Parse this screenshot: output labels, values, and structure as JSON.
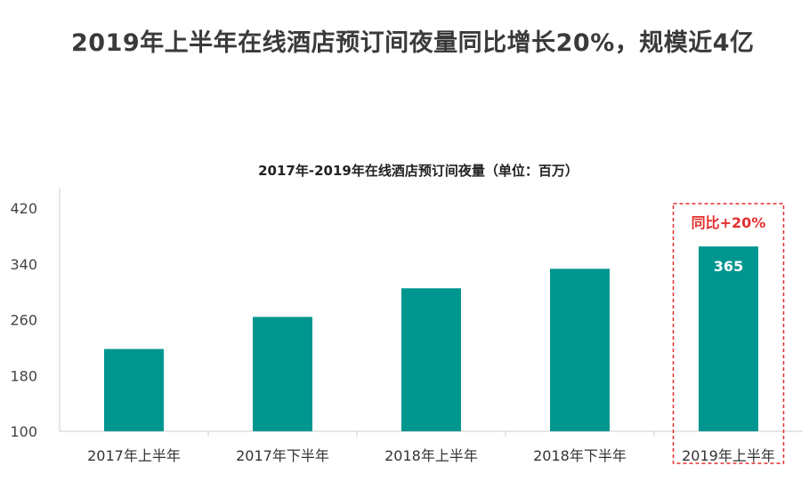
{
  "page": {
    "headline": "2019年上半年在线酒店预订间夜量同比增长20%，规模近4亿"
  },
  "colors": {
    "bar": "#009690",
    "highlight": "#e32f2f",
    "axis": "#cccccc"
  },
  "chart_data": {
    "type": "bar",
    "title": "2017年-2019年在线酒店预订间夜量（单位：百万）",
    "categories": [
      "2017年上半年",
      "2017年下半年",
      "2018年上半年",
      "2018年下半年",
      "2019年上半年"
    ],
    "values": [
      218,
      264,
      305,
      333,
      365
    ],
    "ylim": [
      100,
      420
    ],
    "yticks": [
      "100",
      "180",
      "260",
      "340",
      "420"
    ],
    "grid": false,
    "data_labels": [
      {
        "index": 4,
        "text": "365"
      }
    ],
    "annotations": [
      {
        "index": 4,
        "text": "同比+20%",
        "style": "dashed-box",
        "color": "#e32f2f"
      }
    ]
  }
}
